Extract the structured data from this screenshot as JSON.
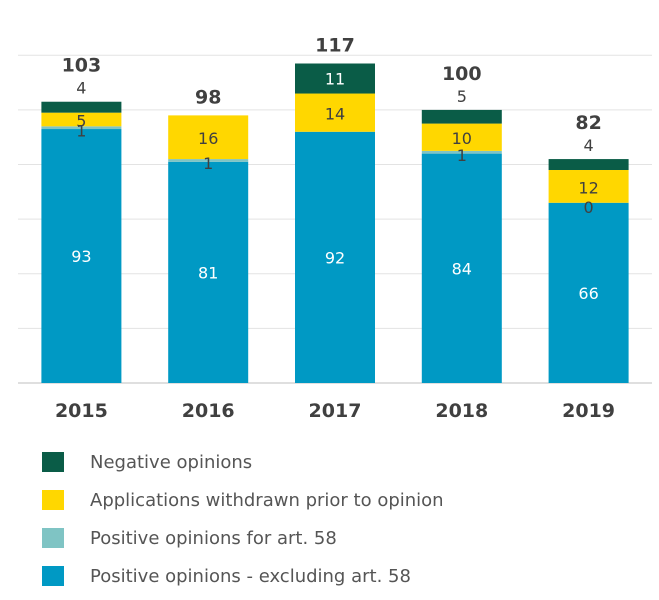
{
  "chart_data": {
    "type": "bar",
    "stacked": true,
    "categories": [
      "2015",
      "2016",
      "2017",
      "2018",
      "2019"
    ],
    "totals": [
      103,
      98,
      117,
      100,
      82
    ],
    "series": [
      {
        "name": "Positive opinions - excluding art. 58",
        "values": [
          93,
          81,
          92,
          84,
          66
        ],
        "color": "#0099C4"
      },
      {
        "name": "Positive opinions for art. 58",
        "values": [
          1,
          1,
          0,
          1,
          0
        ],
        "color": "#7FC4C4"
      },
      {
        "name": "Applications withdrawn prior to opinion",
        "values": [
          5,
          16,
          14,
          10,
          12
        ],
        "color": "#FFD700"
      },
      {
        "name": "Negative opinions",
        "values": [
          4,
          0,
          11,
          5,
          4
        ],
        "color": "#0A5C47"
      }
    ],
    "data_labels": [
      [
        {
          "text": "93",
          "fill": "#ffffff"
        },
        {
          "text": "1",
          "fill": "#404040"
        },
        {
          "text": "5",
          "fill": "#404040"
        },
        {
          "text": "4",
          "fill": "#404040"
        }
      ],
      [
        {
          "text": "81",
          "fill": "#ffffff"
        },
        {
          "text": "1",
          "fill": "#404040"
        },
        {
          "text": "16",
          "fill": "#404040"
        },
        null
      ],
      [
        {
          "text": "92",
          "fill": "#ffffff"
        },
        null,
        {
          "text": "14",
          "fill": "#404040"
        },
        {
          "text": "11",
          "fill": "#ffffff"
        }
      ],
      [
        {
          "text": "84",
          "fill": "#ffffff"
        },
        {
          "text": "1",
          "fill": "#404040"
        },
        {
          "text": "10",
          "fill": "#404040"
        },
        {
          "text": "5",
          "fill": "#404040"
        }
      ],
      [
        {
          "text": "66",
          "fill": "#ffffff"
        },
        {
          "text": "0",
          "fill": "#404040"
        },
        {
          "text": "12",
          "fill": "#404040"
        },
        {
          "text": "4",
          "fill": "#404040"
        }
      ]
    ],
    "ylim": [
      0,
      130
    ],
    "grid": true,
    "legend_position": "bottom",
    "legend_order": [
      "Negative opinions",
      "Applications withdrawn prior to opinion",
      "Positive opinions for art. 58",
      "Positive opinions - excluding art. 58"
    ]
  }
}
